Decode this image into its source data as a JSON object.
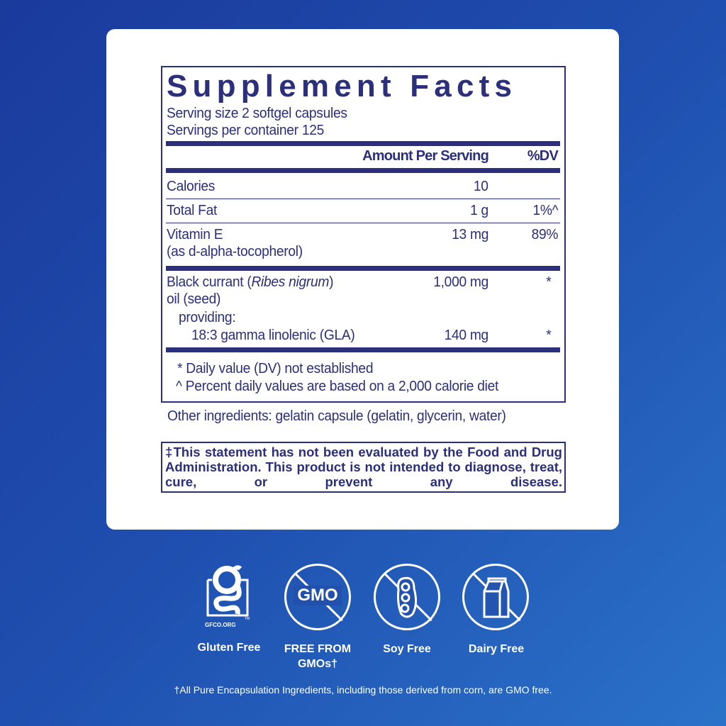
{
  "label": {
    "title": "Supplement Facts",
    "serving_size": "Serving size  2 softgel capsules",
    "servings_per_container": "Servings per container  125",
    "header_amount": "Amount Per Serving",
    "header_dv": "%DV",
    "rows": [
      {
        "name": "Calories",
        "amount": "10",
        "dv": ""
      },
      {
        "name": "Total Fat",
        "amount": "1 g",
        "dv": "1%^"
      },
      {
        "name": "Vitamin E",
        "sub": "(as d-alpha-tocopherol)",
        "amount": "13 mg",
        "dv": "89%"
      },
      {
        "name": "Black currant (",
        "name_italic": "Ribes nigrum",
        "name_end": ")",
        "line2": "oil (seed)",
        "amount": "1,000 mg",
        "dv": "*"
      },
      {
        "name": "providing:"
      },
      {
        "name": "18:3 gamma linolenic (GLA)",
        "amount": "140 mg",
        "dv": "*"
      }
    ],
    "footnotes": [
      "* Daily value (DV) not established",
      "^ Percent daily values are based on a 2,000 calorie diet"
    ],
    "other_ingredients": "Other ingredients: gelatin capsule (gelatin, glycerin, water)",
    "disclaimer": "‡This statement has not been evaluated by the Food and Drug Administration. This product is not intended to diagnose, treat, cure, or prevent any disease."
  },
  "badges": [
    {
      "icon": "gluten-free-gfco-icon",
      "logo_text": "GFCO.ORG",
      "tm": "TM",
      "label": "Gluten Free"
    },
    {
      "icon": "no-gmo-icon",
      "icon_text": "GMO",
      "label": "FREE FROM GMOs†"
    },
    {
      "icon": "no-soy-icon",
      "label": "Soy Free"
    },
    {
      "icon": "no-dairy-icon",
      "label": "Dairy Free"
    }
  ],
  "footer_note": "†All Pure Encapsulation Ingredients, including those derived from corn, are GMO free.",
  "colors": {
    "label_text": "#2b2f7c",
    "background_start": "#1a3a9c",
    "background_end": "#2a72c9"
  }
}
